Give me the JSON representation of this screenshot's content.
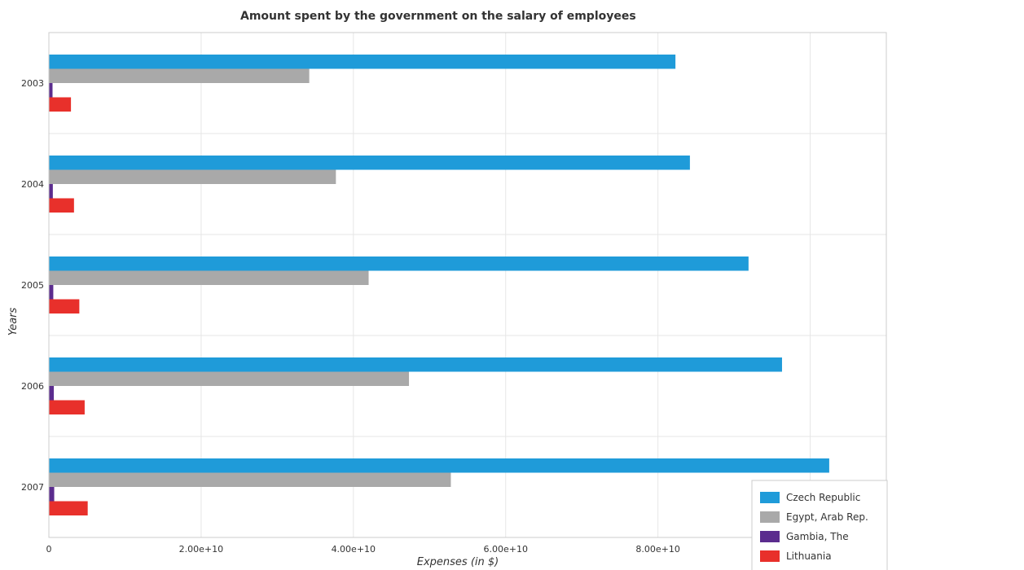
{
  "chart_data": {
    "type": "bar",
    "orientation": "horizontal",
    "title": "Amount spent by the government on the salary of employees",
    "xlabel": "Expenses (in $)",
    "ylabel": "Years",
    "categories": [
      "2003",
      "2004",
      "2005",
      "2006",
      "2007"
    ],
    "xlim": [
      0,
      110000000000
    ],
    "xticks": [
      0,
      20000000000,
      40000000000,
      60000000000,
      80000000000,
      100000000000
    ],
    "xtick_labels": [
      "0",
      "2.00e+10",
      "4.00e+10",
      "6.00e+10",
      "8.00e+10",
      "1.00e+11"
    ],
    "grid": true,
    "legend_position": "bottom-right",
    "series": [
      {
        "name": "Czech Republic",
        "color": "#1f9bd9",
        "values": [
          82300000000,
          84200000000,
          91900000000,
          96300000000,
          102500000000
        ]
      },
      {
        "name": "Egypt, Arab Rep.",
        "color": "#a9a9a9",
        "values": [
          34200000000,
          37700000000,
          42000000000,
          47300000000,
          52800000000
        ]
      },
      {
        "name": "Gambia, The",
        "color": "#5b2c8e",
        "values": [
          480000000,
          520000000,
          580000000,
          650000000,
          700000000
        ]
      },
      {
        "name": "Lithuania",
        "color": "#e8302b",
        "values": [
          2900000000,
          3300000000,
          4000000000,
          4700000000,
          5100000000
        ]
      }
    ]
  }
}
